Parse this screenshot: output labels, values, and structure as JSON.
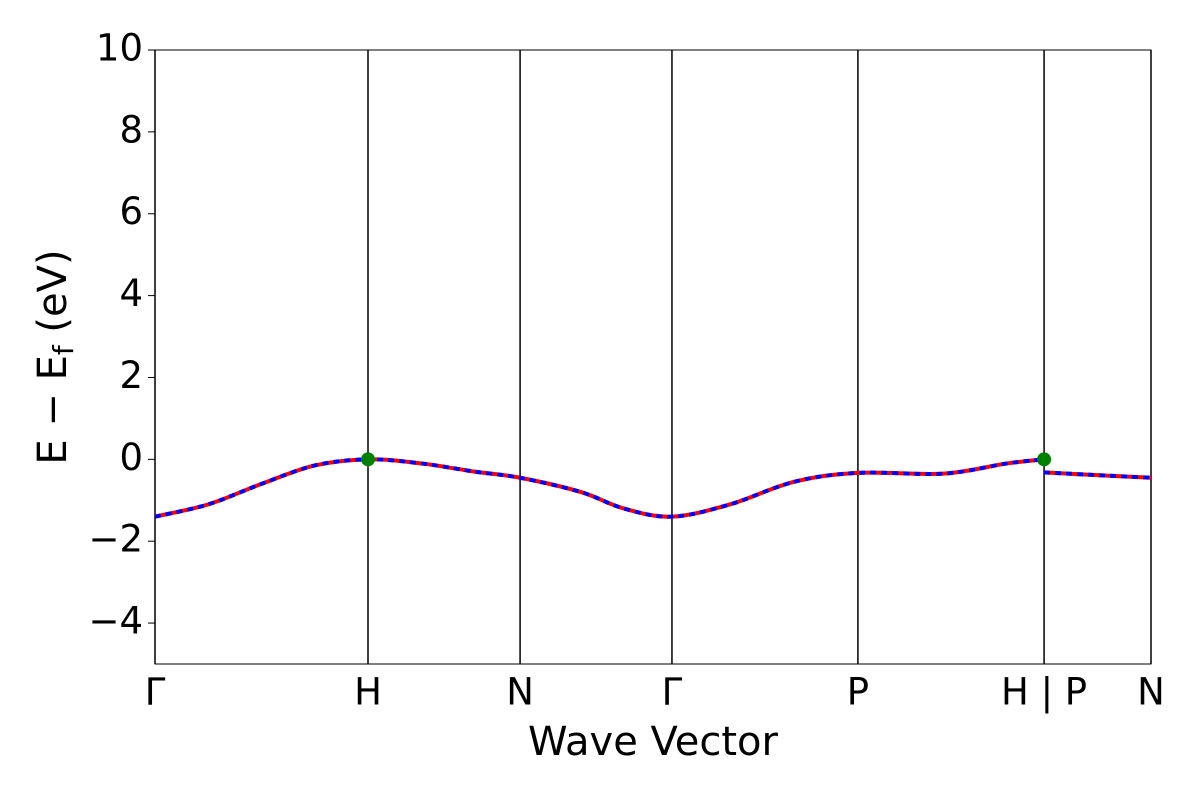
{
  "chart_data": {
    "type": "line",
    "x_label": "Wave Vector",
    "y_label_parts": [
      "E − E",
      "f",
      " (eV)"
    ],
    "xlim": [
      0,
      4.676
    ],
    "ylim": [
      -5,
      10
    ],
    "xticks": [
      {
        "value": 0,
        "label": "Γ"
      },
      {
        "value": 1.0,
        "label": "H"
      },
      {
        "value": 1.714,
        "label": "N"
      },
      {
        "value": 2.427,
        "label": "Γ"
      },
      {
        "value": 3.3,
        "label": "P"
      },
      {
        "value": 4.174,
        "label": "H | P"
      },
      {
        "value": 4.676,
        "label": "N"
      }
    ],
    "yticks": [
      {
        "value": -4,
        "label": "−4"
      },
      {
        "value": -2,
        "label": "−2"
      },
      0,
      2,
      4,
      6,
      8,
      10
    ],
    "grid": "x",
    "series": [
      {
        "color": "#ff0000",
        "linestyle": "solid",
        "x": [
          0,
          0.25,
          0.5,
          0.75,
          1.0,
          1.25,
          1.5,
          1.714,
          2.0,
          2.2,
          2.427,
          2.7,
          3.0,
          3.3,
          3.7,
          4.0,
          4.174,
          null,
          4.174,
          4.4,
          4.676
        ],
        "values": [
          -1.4,
          -1.1,
          -0.6,
          -0.15,
          0,
          -0.1,
          -0.3,
          -0.45,
          -0.8,
          -1.2,
          -1.4,
          -1.1,
          -0.55,
          -0.33,
          -0.35,
          -0.1,
          0,
          null,
          -0.32,
          -0.38,
          -0.45
        ]
      },
      {
        "color": "#0000ff",
        "linestyle": "dashed",
        "x": [
          0,
          0.25,
          0.5,
          0.75,
          1.0,
          1.25,
          1.5,
          1.714,
          2.0,
          2.2,
          2.427,
          2.7,
          3.0,
          3.3,
          3.7,
          4.0,
          4.174,
          null,
          4.174,
          4.4,
          4.676
        ],
        "values": [
          -1.4,
          -1.1,
          -0.6,
          -0.15,
          0,
          -0.1,
          -0.3,
          -0.45,
          -0.8,
          -1.2,
          -1.4,
          -1.1,
          -0.55,
          -0.33,
          -0.35,
          -0.1,
          0,
          null,
          -0.32,
          -0.38,
          -0.45
        ]
      }
    ],
    "markers": {
      "color": "#008000",
      "x": [
        1.0,
        4.174
      ],
      "values": [
        0,
        0
      ]
    }
  }
}
